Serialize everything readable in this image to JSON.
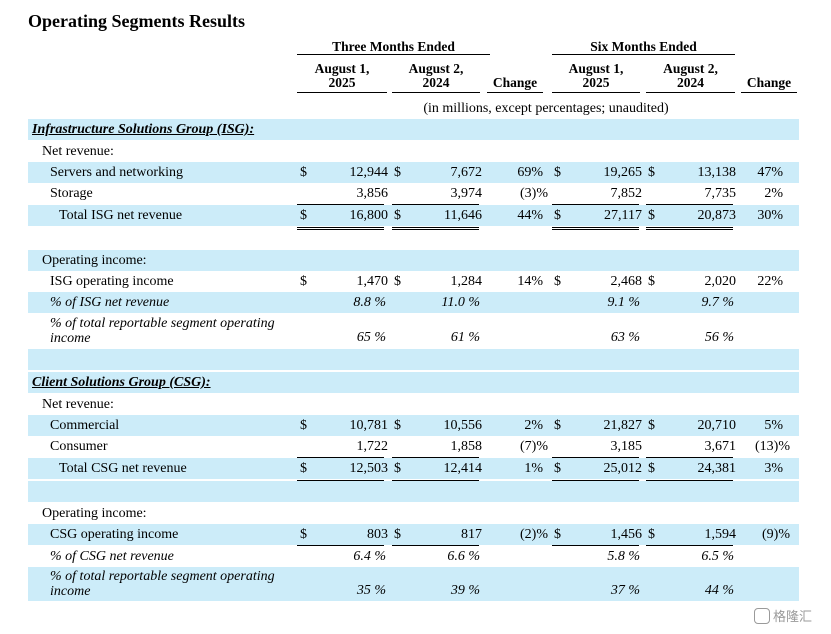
{
  "title": "Operating Segments Results",
  "header": {
    "three_months": "Three Months Ended",
    "six_months": "Six Months Ended",
    "col_3m_2025": [
      "August 1,",
      "2025"
    ],
    "col_3m_2024": [
      "August 2,",
      "2024"
    ],
    "col_change": "Change",
    "col_6m_2025": [
      "August 1,",
      "2025"
    ],
    "col_6m_2024": [
      "August 2,",
      "2024"
    ],
    "col_change2": "Change",
    "note": "(in millions, except percentages; unaudited)"
  },
  "isg": {
    "heading": "Infrastructure Solutions Group (ISG):",
    "net_revenue_label": "Net revenue:",
    "servers": {
      "label": "Servers and networking",
      "d1": "$",
      "v1": "12,944",
      "d2": "$",
      "v2": "7,672",
      "chg": "69%",
      "d3": "$",
      "v3": "19,265",
      "d4": "$",
      "v4": "13,138",
      "chg2": "47%"
    },
    "storage": {
      "label": "Storage",
      "v1": "3,856",
      "v2": "3,974",
      "chg": "(3)%",
      "v3": "7,852",
      "v4": "7,735",
      "chg2": "2%"
    },
    "total": {
      "label": "Total ISG net revenue",
      "d1": "$",
      "v1": "16,800",
      "d2": "$",
      "v2": "11,646",
      "chg": "44%",
      "d3": "$",
      "v3": "27,117",
      "d4": "$",
      "v4": "20,873",
      "chg2": "30%"
    },
    "op_income_label": "Operating income:",
    "op_income": {
      "label": "ISG operating income",
      "d1": "$",
      "v1": "1,470",
      "d2": "$",
      "v2": "1,284",
      "chg": "14%",
      "d3": "$",
      "v3": "2,468",
      "d4": "$",
      "v4": "2,020",
      "chg2": "22%"
    },
    "pct_net": {
      "label": "% of ISG net revenue",
      "v1": "8.8 %",
      "v2": "11.0 %",
      "v3": "9.1 %",
      "v4": "9.7 %"
    },
    "pct_total": {
      "label1": "% of total reportable segment operating",
      "label2": "income",
      "v1": "65 %",
      "v2": "61 %",
      "v3": "63 %",
      "v4": "56 %"
    }
  },
  "csg": {
    "heading": "Client Solutions Group (CSG):",
    "net_revenue_label": "Net revenue:",
    "commercial": {
      "label": "Commercial",
      "d1": "$",
      "v1": "10,781",
      "d2": "$",
      "v2": "10,556",
      "chg": "2%",
      "d3": "$",
      "v3": "21,827",
      "d4": "$",
      "v4": "20,710",
      "chg2": "5%"
    },
    "consumer": {
      "label": "Consumer",
      "v1": "1,722",
      "v2": "1,858",
      "chg": "(7)%",
      "v3": "3,185",
      "v4": "3,671",
      "chg2": "(13)%"
    },
    "total": {
      "label": "Total CSG net revenue",
      "d1": "$",
      "v1": "12,503",
      "d2": "$",
      "v2": "12,414",
      "chg": "1%",
      "d3": "$",
      "v3": "25,012",
      "d4": "$",
      "v4": "24,381",
      "chg2": "3%"
    },
    "op_income_label": "Operating income:",
    "op_income": {
      "label": "CSG operating income",
      "d1": "$",
      "v1": "803",
      "d2": "$",
      "v2": "817",
      "chg": "(2)%",
      "d3": "$",
      "v3": "1,456",
      "d4": "$",
      "v4": "1,594",
      "chg2": "(9)%"
    },
    "pct_net": {
      "label": "% of CSG net revenue",
      "v1": "6.4 %",
      "v2": "6.6 %",
      "v3": "5.8 %",
      "v4": "6.5 %"
    },
    "pct_total": {
      "label1": "% of total reportable segment operating",
      "label2": "income",
      "v1": "35 %",
      "v2": "39 %",
      "v3": "37 %",
      "v4": "44 %"
    }
  },
  "watermark": "格隆汇",
  "colors": {
    "row_shade": "#ccecf9"
  }
}
